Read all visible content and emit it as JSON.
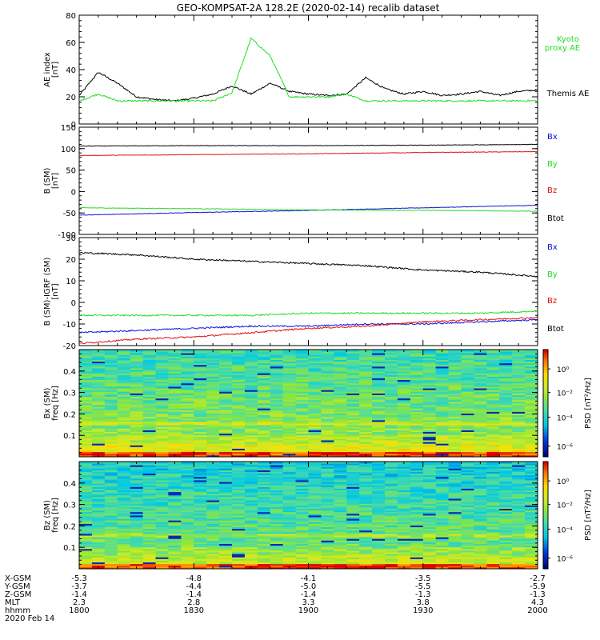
{
  "title": "GEO-KOMPSAT-2A 128.2E (2020-02-14) recalib dataset",
  "colors": {
    "black": "#000000",
    "green": "#22dd22",
    "red": "#dd1111",
    "blue": "#1111dd",
    "axis": "#000000"
  },
  "time_axis": {
    "start": "18:00",
    "end": "20:00",
    "tick_hhmm": [
      "1800",
      "1830",
      "1900",
      "1930",
      "2000"
    ]
  },
  "panels": [
    {
      "id": "ae",
      "ylabel": [
        "AE index",
        "[nT]"
      ],
      "yticks": [
        0,
        20,
        40,
        60,
        80
      ],
      "ylim": [
        0,
        80
      ],
      "legend": [
        {
          "text": "Kyoto",
          "color": "#22dd22"
        },
        {
          "text": "proxy AE",
          "color": "#22dd22"
        },
        {
          "text": "Themis AE",
          "color": "#000000"
        }
      ]
    },
    {
      "id": "bgsm",
      "ylabel": [
        "B (SM)",
        "[nT]"
      ],
      "yticks": [
        -100,
        -50,
        0,
        50,
        100,
        150
      ],
      "ylim": [
        -100,
        150
      ],
      "legend": [
        {
          "text": "Bx",
          "color": "#1111dd"
        },
        {
          "text": "By",
          "color": "#22dd22"
        },
        {
          "text": "Bz",
          "color": "#dd1111"
        },
        {
          "text": "Btot",
          "color": "#000000"
        }
      ]
    },
    {
      "id": "bigrf",
      "ylabel": [
        "B (SM)-IGRF (SM)",
        "[nT]"
      ],
      "yticks": [
        -20,
        -10,
        0,
        10,
        20,
        30
      ],
      "ylim": [
        -20,
        30
      ],
      "legend": [
        {
          "text": "Bx",
          "color": "#1111dd"
        },
        {
          "text": "By",
          "color": "#22dd22"
        },
        {
          "text": "Bz",
          "color": "#dd1111"
        },
        {
          "text": "Btot",
          "color": "#000000"
        }
      ]
    },
    {
      "id": "specx",
      "ylabel": [
        "Bx (SM)",
        "freq [Hz]"
      ],
      "yticks": [
        0.1,
        0.2,
        0.3,
        0.4
      ],
      "ylim": [
        0,
        0.5
      ],
      "colorbar_label": "PSD [nT²/Hz]",
      "colorbar_ticks": [
        "10⁰",
        "10⁻²",
        "10⁻⁴",
        "10⁻⁶"
      ]
    },
    {
      "id": "specz",
      "ylabel": [
        "Bz (SM)",
        "freq [Hz]"
      ],
      "yticks": [
        0.1,
        0.2,
        0.3,
        0.4
      ],
      "ylim": [
        0,
        0.5
      ],
      "colorbar_label": "PSD [nT²/Hz]",
      "colorbar_ticks": [
        "10⁰",
        "10⁻²",
        "10⁻⁴",
        "10⁻⁶"
      ]
    }
  ],
  "ephemeris": [
    {
      "label": "X-GSM",
      "values": [
        "-5.3",
        "-4.8",
        "-4.1",
        "-3.5",
        "-2.7"
      ]
    },
    {
      "label": "Y-GSM",
      "values": [
        "-3.7",
        "-4.4",
        "-5.0",
        "-5.5",
        "-5.9"
      ]
    },
    {
      "label": "Z-GSM",
      "values": [
        "-1.4",
        "-1.4",
        "-1.4",
        "-1.3",
        "-1.3"
      ]
    },
    {
      "label": "MLT",
      "values": [
        "2.3",
        "2.8",
        "3.3",
        "3.8",
        "4.3"
      ]
    },
    {
      "label": "hhmm",
      "values": [
        "1800",
        "1830",
        "1900",
        "1930",
        "2000"
      ]
    }
  ],
  "date_label": "2020 Feb 14",
  "chart_data": [
    {
      "type": "line",
      "title": "GEO-KOMPSAT-2A 128.2E (2020-02-14) recalib dataset",
      "ylabel": "AE index [nT]",
      "x": [
        "18:00",
        "18:05",
        "18:10",
        "18:15",
        "18:20",
        "18:25",
        "18:30",
        "18:35",
        "18:40",
        "18:45",
        "18:50",
        "18:55",
        "19:00",
        "19:05",
        "19:10",
        "19:15",
        "19:20",
        "19:25",
        "19:30",
        "19:35",
        "19:40",
        "19:45",
        "19:50",
        "19:55",
        "20:00"
      ],
      "ylim": [
        0,
        80
      ],
      "series": [
        {
          "name": "Themis AE",
          "color": "#000000",
          "values": [
            21,
            38,
            30,
            20,
            18,
            17,
            19,
            22,
            28,
            22,
            30,
            24,
            22,
            21,
            22,
            34,
            26,
            22,
            24,
            21,
            22,
            24,
            21,
            24,
            25
          ]
        },
        {
          "name": "Kyoto proxy AE",
          "color": "#22dd22",
          "values": [
            17,
            22,
            17,
            17,
            17,
            17,
            17,
            17,
            23,
            63,
            50,
            20,
            20,
            20,
            22,
            17,
            17,
            17,
            17,
            17,
            17,
            17,
            17,
            17,
            17
          ]
        }
      ]
    },
    {
      "type": "line",
      "ylabel": "B (SM) [nT]",
      "x": [
        "18:00",
        "18:30",
        "19:00",
        "19:30",
        "20:00"
      ],
      "ylim": [
        -100,
        150
      ],
      "series": [
        {
          "name": "Bx",
          "color": "#1111dd",
          "values": [
            -55,
            -49,
            -44,
            -38,
            -32
          ]
        },
        {
          "name": "By",
          "color": "#22dd22",
          "values": [
            -38,
            -40,
            -43,
            -44,
            -46
          ]
        },
        {
          "name": "Bz",
          "color": "#dd1111",
          "values": [
            84,
            86,
            88,
            91,
            93
          ]
        },
        {
          "name": "Btot",
          "color": "#000000",
          "values": [
            106,
            107,
            107,
            108,
            110
          ]
        }
      ]
    },
    {
      "type": "line",
      "ylabel": "B (SM)-IGRF (SM) [nT]",
      "x": [
        "18:00",
        "18:15",
        "18:30",
        "18:45",
        "19:00",
        "19:15",
        "19:30",
        "19:45",
        "20:00"
      ],
      "ylim": [
        -20,
        30
      ],
      "series": [
        {
          "name": "Bx",
          "color": "#1111dd",
          "values": [
            -14,
            -13,
            -12,
            -11,
            -11,
            -10,
            -10,
            -9,
            -8
          ]
        },
        {
          "name": "By",
          "color": "#22dd22",
          "values": [
            -6,
            -6,
            -6,
            -6,
            -5,
            -5,
            -5,
            -5,
            -4
          ]
        },
        {
          "name": "Bz",
          "color": "#dd1111",
          "values": [
            -19,
            -17,
            -16,
            -14,
            -12,
            -11,
            -9,
            -8,
            -7
          ]
        },
        {
          "name": "Btot",
          "color": "#000000",
          "values": [
            23,
            22,
            20,
            19,
            18,
            17,
            15,
            14,
            12
          ]
        }
      ]
    },
    {
      "type": "heatmap",
      "ylabel": "Bx (SM) freq [Hz]",
      "ylim": [
        0,
        0.5
      ],
      "colorbar": "PSD [nT²/Hz]"
    },
    {
      "type": "heatmap",
      "ylabel": "Bz (SM) freq [Hz]",
      "ylim": [
        0,
        0.5
      ],
      "colorbar": "PSD [nT²/Hz]"
    }
  ]
}
